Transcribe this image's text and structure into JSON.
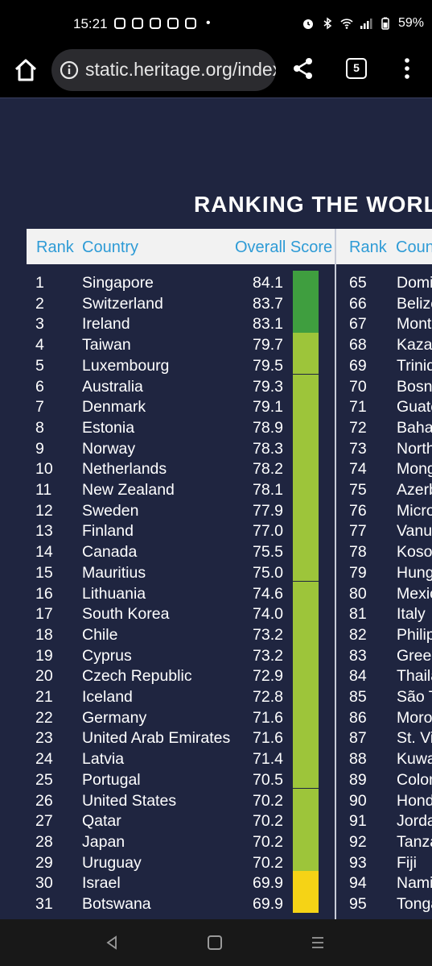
{
  "status_bar": {
    "time": "15:21",
    "notification_icons": [
      "instagram-icon",
      "instagram-icon",
      "instagram-icon",
      "instagram-icon",
      "instagram-icon"
    ],
    "dot": "•",
    "icons": [
      "alarm-icon",
      "bluetooth-icon",
      "wifi-icon",
      "signal-icon",
      "battery-icon"
    ],
    "battery": "59%"
  },
  "browser": {
    "url": "static.heritage.org/index",
    "tab_count": "5"
  },
  "page": {
    "title": "RANKING THE WORLD",
    "headers": {
      "rank": "Rank",
      "country": "Country",
      "overall_score": "Overall Score",
      "rank2": "Rank",
      "country2": "Country"
    },
    "colors": {
      "green": "#3f9e3f",
      "lime": "#9dc53a",
      "yellow": "#f5d316",
      "header_text": "#2e9bd6",
      "background": "#1f2540"
    },
    "rows": [
      {
        "rank": "1",
        "country": "Singapore",
        "score": "84.1",
        "band": "green",
        "rank2": "65",
        "country2": "Dominican Republic"
      },
      {
        "rank": "2",
        "country": "Switzerland",
        "score": "83.7",
        "band": "green",
        "rank2": "66",
        "country2": "Belize"
      },
      {
        "rank": "3",
        "country": "Ireland",
        "score": "83.1",
        "band": "green",
        "rank2": "67",
        "country2": "Montenegro"
      },
      {
        "rank": "4",
        "country": "Taiwan",
        "score": "79.7",
        "band": "lime",
        "rank2": "68",
        "country2": "Kazakhstan"
      },
      {
        "rank": "5",
        "country": "Luxembourg",
        "score": "79.5",
        "band": "lime",
        "rank2": "69",
        "country2": "Trinidad"
      },
      {
        "rank": "6",
        "country": "Australia",
        "score": "79.3",
        "band": "lime",
        "rank2": "70",
        "country2": "Bosnia"
      },
      {
        "rank": "7",
        "country": "Denmark",
        "score": "79.1",
        "band": "lime",
        "rank2": "71",
        "country2": "Guatemala"
      },
      {
        "rank": "8",
        "country": "Estonia",
        "score": "78.9",
        "band": "lime",
        "rank2": "72",
        "country2": "Bahamas"
      },
      {
        "rank": "9",
        "country": "Norway",
        "score": "78.3",
        "band": "lime",
        "rank2": "73",
        "country2": "North"
      },
      {
        "rank": "10",
        "country": "Netherlands",
        "score": "78.2",
        "band": "lime",
        "rank2": "74",
        "country2": "Mongolia"
      },
      {
        "rank": "11",
        "country": "New Zealand",
        "score": "78.1",
        "band": "lime",
        "rank2": "75",
        "country2": "Azerbaijan"
      },
      {
        "rank": "12",
        "country": "Sweden",
        "score": "77.9",
        "band": "lime",
        "rank2": "76",
        "country2": "Micronesia"
      },
      {
        "rank": "13",
        "country": "Finland",
        "score": "77.0",
        "band": "lime",
        "rank2": "77",
        "country2": "Vanuatu"
      },
      {
        "rank": "14",
        "country": "Canada",
        "score": "75.5",
        "band": "lime",
        "rank2": "78",
        "country2": "Kosovo"
      },
      {
        "rank": "15",
        "country": "Mauritius",
        "score": "75.0",
        "band": "lime",
        "rank2": "79",
        "country2": "Hungary"
      },
      {
        "rank": "16",
        "country": "Lithuania",
        "score": "74.6",
        "band": "lime",
        "rank2": "80",
        "country2": "Mexico"
      },
      {
        "rank": "17",
        "country": "South Korea",
        "score": "74.0",
        "band": "lime",
        "rank2": "81",
        "country2": "Italy"
      },
      {
        "rank": "18",
        "country": "Chile",
        "score": "73.2",
        "band": "lime",
        "rank2": "82",
        "country2": "Philippines"
      },
      {
        "rank": "19",
        "country": "Cyprus",
        "score": "73.2",
        "band": "lime",
        "rank2": "83",
        "country2": "Greece"
      },
      {
        "rank": "20",
        "country": "Czech Republic",
        "score": "72.9",
        "band": "lime",
        "rank2": "84",
        "country2": "Thailand"
      },
      {
        "rank": "21",
        "country": "Iceland",
        "score": "72.8",
        "band": "lime",
        "rank2": "85",
        "country2": "São Tomé"
      },
      {
        "rank": "22",
        "country": "Germany",
        "score": "71.6",
        "band": "lime",
        "rank2": "86",
        "country2": "Morocco"
      },
      {
        "rank": "23",
        "country": "United Arab Emirates",
        "score": "71.6",
        "band": "lime",
        "rank2": "87",
        "country2": "St. Vincent"
      },
      {
        "rank": "24",
        "country": "Latvia",
        "score": "71.4",
        "band": "lime",
        "rank2": "88",
        "country2": "Kuwait"
      },
      {
        "rank": "25",
        "country": "Portugal",
        "score": "70.5",
        "band": "lime",
        "rank2": "89",
        "country2": "Colombia"
      },
      {
        "rank": "26",
        "country": "United States",
        "score": "70.2",
        "band": "lime",
        "rank2": "90",
        "country2": "Honduras"
      },
      {
        "rank": "27",
        "country": "Qatar",
        "score": "70.2",
        "band": "lime",
        "rank2": "91",
        "country2": "Jordan"
      },
      {
        "rank": "28",
        "country": "Japan",
        "score": "70.2",
        "band": "lime",
        "rank2": "92",
        "country2": "Tanzania"
      },
      {
        "rank": "29",
        "country": "Uruguay",
        "score": "70.2",
        "band": "lime",
        "rank2": "93",
        "country2": "Fiji"
      },
      {
        "rank": "30",
        "country": "Israel",
        "score": "69.9",
        "band": "yellow",
        "rank2": "94",
        "country2": "Namibia"
      },
      {
        "rank": "31",
        "country": "Botswana",
        "score": "69.9",
        "band": "yellow",
        "rank2": "95",
        "country2": "Tonga"
      }
    ]
  },
  "nav": {
    "icons": [
      "back-icon",
      "home-icon",
      "recents-icon"
    ]
  }
}
